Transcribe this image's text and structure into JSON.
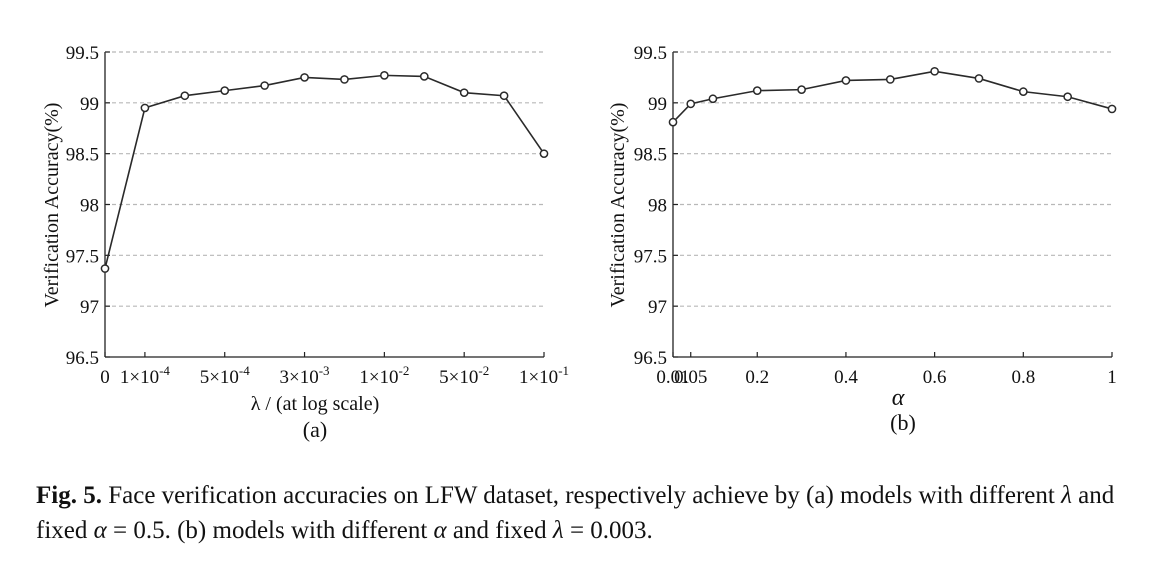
{
  "chart_data": [
    {
      "type": "line",
      "panel_label": "(a)",
      "xlabel": "λ / (at log scale)",
      "ylabel": "Verification Accuracy(%)",
      "ylim": [
        96.5,
        99.5
      ],
      "yticks": [
        "96.5",
        "97",
        "97.5",
        "98",
        "98.5",
        "99",
        "99.5"
      ],
      "xtick_labels": [
        {
          "base": "0",
          "exp": ""
        },
        {
          "base": "1×10",
          "exp": "-4"
        },
        {
          "base": "5×10",
          "exp": "-4"
        },
        {
          "base": "3×10",
          "exp": "-3"
        },
        {
          "base": "1×10",
          "exp": "-2"
        },
        {
          "base": "5×10",
          "exp": "-2"
        },
        {
          "base": "1×10",
          "exp": "-1"
        }
      ],
      "grid": "horizontal dashed",
      "series": [
        {
          "values": [
            97.37,
            98.95,
            99.07,
            99.12,
            99.17,
            99.25,
            99.23,
            99.27,
            99.26,
            99.1,
            99.07,
            98.5
          ]
        }
      ]
    },
    {
      "type": "line",
      "panel_label": "(b)",
      "xlabel": "α",
      "ylabel": "Verification Accuracy(%)",
      "ylim": [
        96.5,
        99.5
      ],
      "yticks": [
        "96.5",
        "97",
        "97.5",
        "98",
        "98.5",
        "99",
        "99.5"
      ],
      "xlim": [
        0.01,
        1
      ],
      "xtick_labels": [
        {
          "base": "0.01",
          "exp": ""
        },
        {
          "base": "0.05",
          "exp": ""
        },
        {
          "base": "0.2",
          "exp": ""
        },
        {
          "base": "0.4",
          "exp": ""
        },
        {
          "base": "0.6",
          "exp": ""
        },
        {
          "base": "0.8",
          "exp": ""
        },
        {
          "base": "1",
          "exp": ""
        }
      ],
      "grid": "horizontal dashed",
      "series": [
        {
          "x": [
            0.01,
            0.05,
            0.1,
            0.2,
            0.3,
            0.4,
            0.5,
            0.6,
            0.7,
            0.8,
            0.9,
            1.0
          ],
          "values": [
            98.81,
            98.99,
            99.04,
            99.12,
            99.13,
            99.22,
            99.23,
            99.31,
            99.24,
            99.11,
            99.06,
            98.94
          ]
        }
      ]
    }
  ],
  "caption": {
    "label": "Fig. 5.",
    "t1": " Face verification accuracies on LFW dataset, respectively achieve by (a) models with different ",
    "lambda": "λ",
    "t2": " and fixed ",
    "alpha": "α",
    "t3": " = 0.5. (b) models with different ",
    "alpha2": "α",
    "t4": " and fixed ",
    "lambda2": "λ",
    "t5": " = 0.003."
  }
}
